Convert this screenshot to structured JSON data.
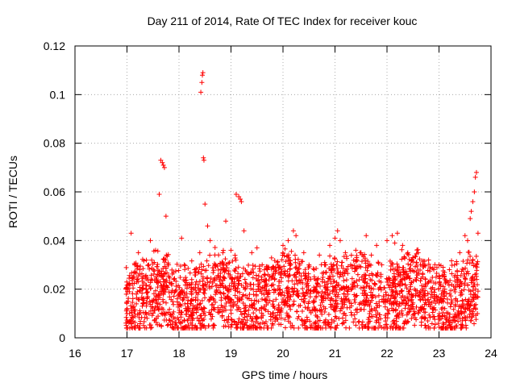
{
  "chart_data": {
    "type": "scatter",
    "title": "Day 211 of 2014, Rate Of TEC Index for receiver kouc",
    "xlabel": "GPS time / hours",
    "ylabel": "ROTI / TECUs",
    "xlim": [
      16,
      24
    ],
    "ylim": [
      0,
      0.12
    ],
    "xticks": [
      16,
      17,
      18,
      19,
      20,
      21,
      22,
      23,
      24
    ],
    "xtick_labels": [
      "16",
      "17",
      "18",
      "19",
      "20",
      "21",
      "22",
      "23",
      "24"
    ],
    "yticks": [
      0,
      0.02,
      0.04,
      0.06,
      0.08,
      0.1,
      0.12
    ],
    "ytick_labels": [
      "0",
      "0.02",
      "0.04",
      "0.06",
      "0.08",
      "0.1",
      "0.12"
    ],
    "grid": true,
    "marker": "+",
    "color": "#ff0000",
    "series": [
      {
        "name": "ROTI",
        "note": "dense cloud of points between ~17.0 and ~23.75 h, mostly 0.005-0.035 TECU; representative sample incl. visible peaks",
        "x": [
          16.98,
          17.02,
          17.05,
          17.08,
          17.12,
          17.15,
          17.18,
          17.22,
          17.3,
          17.45,
          17.55,
          17.62,
          17.65,
          17.68,
          17.7,
          17.72,
          17.75,
          17.8,
          17.9,
          18.0,
          18.05,
          18.1,
          18.2,
          18.3,
          18.4,
          18.42,
          18.44,
          18.45,
          18.46,
          18.47,
          18.48,
          18.5,
          18.55,
          18.6,
          18.7,
          18.8,
          18.9,
          19.0,
          19.1,
          19.15,
          19.18,
          19.2,
          19.25,
          19.4,
          19.5,
          19.6,
          19.7,
          19.8,
          19.9,
          20.0,
          20.1,
          20.2,
          20.25,
          20.4,
          20.5,
          20.6,
          20.7,
          20.8,
          20.9,
          21.0,
          21.05,
          21.1,
          21.2,
          21.3,
          21.4,
          21.5,
          21.6,
          21.7,
          21.8,
          21.9,
          22.0,
          22.1,
          22.15,
          22.2,
          22.3,
          22.4,
          22.5,
          22.6,
          22.7,
          22.8,
          22.9,
          23.0,
          23.1,
          23.2,
          23.3,
          23.4,
          23.5,
          23.55,
          23.6,
          23.62,
          23.65,
          23.68,
          23.7,
          23.72,
          23.75
        ],
        "y": [
          0.02,
          0.015,
          0.01,
          0.043,
          0.025,
          0.03,
          0.018,
          0.035,
          0.02,
          0.04,
          0.036,
          0.059,
          0.073,
          0.072,
          0.071,
          0.07,
          0.05,
          0.03,
          0.024,
          0.018,
          0.041,
          0.03,
          0.022,
          0.028,
          0.035,
          0.101,
          0.105,
          0.108,
          0.109,
          0.074,
          0.073,
          0.055,
          0.046,
          0.04,
          0.03,
          0.025,
          0.048,
          0.036,
          0.059,
          0.058,
          0.057,
          0.056,
          0.044,
          0.035,
          0.037,
          0.03,
          0.028,
          0.025,
          0.03,
          0.038,
          0.04,
          0.044,
          0.042,
          0.035,
          0.03,
          0.028,
          0.034,
          0.03,
          0.038,
          0.041,
          0.044,
          0.04,
          0.035,
          0.03,
          0.036,
          0.035,
          0.042,
          0.034,
          0.038,
          0.03,
          0.04,
          0.042,
          0.039,
          0.043,
          0.038,
          0.035,
          0.033,
          0.035,
          0.03,
          0.032,
          0.028,
          0.03,
          0.025,
          0.028,
          0.025,
          0.035,
          0.042,
          0.04,
          0.049,
          0.052,
          0.056,
          0.06,
          0.066,
          0.068,
          0.043
        ]
      }
    ]
  }
}
